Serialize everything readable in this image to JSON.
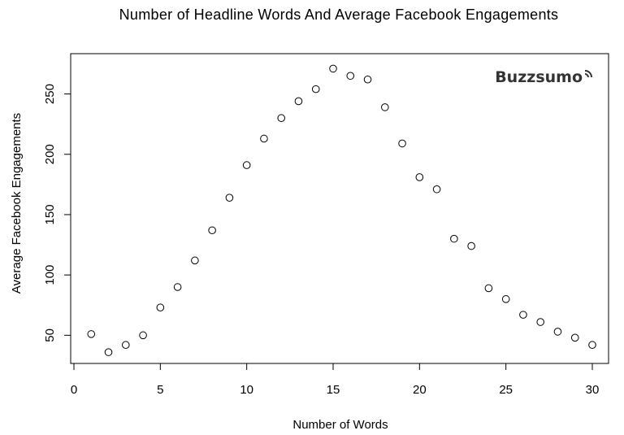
{
  "chart_data": {
    "type": "scatter",
    "title": "Number of Headline Words And Average Facebook Engagements",
    "xlabel": "Number of Words",
    "ylabel": "Average Facebook Engagements",
    "xlim": [
      0,
      30
    ],
    "ylim": [
      28,
      278
    ],
    "xticks": [
      0,
      5,
      10,
      15,
      20,
      25,
      30
    ],
    "yticks": [
      50,
      100,
      150,
      200,
      250
    ],
    "grid": false,
    "marker": "open-circle",
    "series": [
      {
        "x": [
          1,
          2,
          3,
          4,
          5,
          6,
          7,
          8,
          9,
          10,
          11,
          12,
          13,
          14,
          15,
          16,
          17,
          18,
          19,
          20,
          21,
          22,
          23,
          24,
          25,
          26,
          27,
          28,
          29,
          30
        ],
        "y": [
          51,
          36,
          42,
          50,
          73,
          90,
          112,
          137,
          164,
          191,
          213,
          230,
          244,
          254,
          271,
          265,
          262,
          239,
          209,
          181,
          171,
          130,
          124,
          89,
          80,
          67,
          61,
          53,
          48,
          42
        ]
      }
    ],
    "watermark": "Buzzsumo"
  }
}
